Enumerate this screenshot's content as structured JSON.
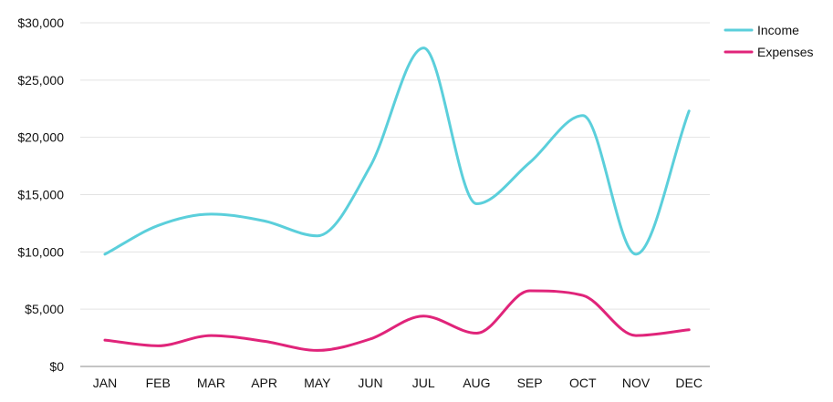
{
  "chart_data": {
    "type": "line",
    "title": "",
    "xlabel": "",
    "ylabel": "",
    "categories": [
      "JAN",
      "FEB",
      "MAR",
      "APR",
      "MAY",
      "JUN",
      "JUL",
      "AUG",
      "SEP",
      "OCT",
      "NOV",
      "DEC"
    ],
    "y_ticks": [
      0,
      5000,
      10000,
      15000,
      20000,
      25000,
      30000
    ],
    "y_tick_labels": [
      "$0",
      "$5,000",
      "$10,000",
      "$15,000",
      "$20,000",
      "$25,000",
      "$30,000"
    ],
    "ylim": [
      0,
      30000
    ],
    "grid": true,
    "legend_position": "top-right",
    "smooth": true,
    "series": [
      {
        "name": "Income",
        "color": "#5bcfdb",
        "values": [
          9800,
          12300,
          13300,
          12700,
          11400,
          17500,
          27800,
          14200,
          17800,
          21900,
          9800,
          22300
        ]
      },
      {
        "name": "Expenses",
        "color": "#e0247a",
        "values": [
          2300,
          1800,
          2700,
          2200,
          1400,
          2400,
          4400,
          2900,
          6600,
          6200,
          2700,
          3200
        ]
      }
    ]
  }
}
